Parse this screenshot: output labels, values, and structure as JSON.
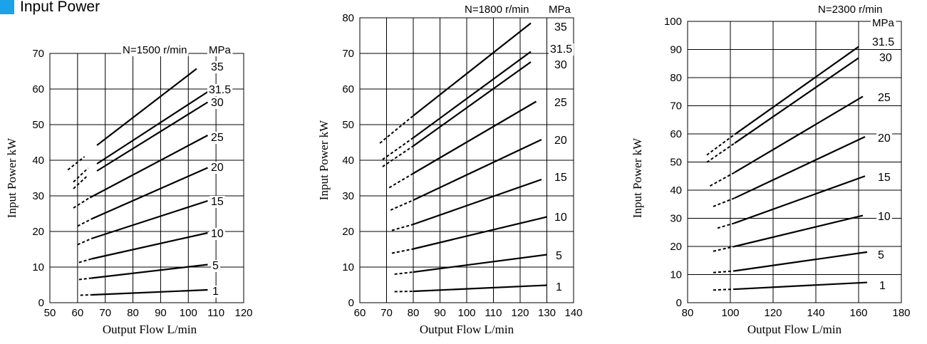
{
  "page": {
    "section_title": "Input Power",
    "accent_color": "#1aa3e8"
  },
  "chart_data": [
    {
      "type": "line",
      "condition": "N=1500 r/min",
      "unit": "MPa",
      "xlabel": "Output Flow  L/min",
      "ylabel": "Input Power  kW",
      "xlim": [
        50,
        120
      ],
      "ylim": [
        0,
        70
      ],
      "xticks": [
        50,
        60,
        70,
        80,
        90,
        100,
        110,
        120
      ],
      "yticks": [
        0,
        10,
        20,
        30,
        40,
        50,
        60,
        70
      ],
      "grid": true,
      "series": [
        {
          "name": "35",
          "dashed": [
            [
              56.5,
              37.3
            ],
            [
              62.5,
              41.0
            ]
          ],
          "solid": [
            [
              67,
              44.2
            ],
            [
              103,
              65.7
            ]
          ]
        },
        {
          "name": "31.5",
          "dashed": [
            [
              58.5,
              33.9
            ],
            [
              63.8,
              37.8
            ]
          ],
          "solid": [
            [
              67,
              39.0
            ],
            [
              107,
              59.2
            ]
          ]
        },
        {
          "name": "30",
          "dashed": [
            [
              58.5,
              32.0
            ],
            [
              63.8,
              35.8
            ]
          ],
          "solid": [
            [
              67,
              37.0
            ],
            [
              107,
              56.3
            ]
          ]
        },
        {
          "name": "25",
          "dashed": [
            [
              58.5,
              26.6
            ],
            [
              64.0,
              29.3
            ]
          ],
          "solid": [
            [
              64.5,
              29.5
            ],
            [
              107,
              47.0
            ]
          ]
        },
        {
          "name": "20",
          "dashed": [
            [
              60,
              21.5
            ],
            [
              65,
              23.5
            ]
          ],
          "solid": [
            [
              65,
              23.5
            ],
            [
              107,
              37.9
            ]
          ]
        },
        {
          "name": "15",
          "dashed": [
            [
              60,
              16.3
            ],
            [
              65,
              18.0
            ]
          ],
          "solid": [
            [
              65,
              18.0
            ],
            [
              107,
              28.6
            ]
          ]
        },
        {
          "name": "10",
          "dashed": [
            [
              60.5,
              11.3
            ],
            [
              65,
              12.3
            ]
          ],
          "solid": [
            [
              65,
              12.3
            ],
            [
              107,
              19.6
            ]
          ]
        },
        {
          "name": "5",
          "dashed": [
            [
              60.5,
              6.5
            ],
            [
              65,
              6.9
            ]
          ],
          "solid": [
            [
              65,
              6.9
            ],
            [
              107,
              10.7
            ]
          ]
        },
        {
          "name": "1",
          "dashed": [
            [
              61,
              2.1
            ],
            [
              65,
              2.2
            ]
          ],
          "solid": [
            [
              65,
              2.2
            ],
            [
              107,
              3.6
            ]
          ]
        }
      ]
    },
    {
      "type": "line",
      "condition": "N=1800 r/min",
      "unit": "MPa",
      "xlabel": "Output Flow  L/min",
      "ylabel": "Input Power  kW",
      "xlim": [
        60,
        140
      ],
      "ylim": [
        0,
        80
      ],
      "xticks": [
        60,
        70,
        80,
        90,
        100,
        110,
        120,
        130,
        140
      ],
      "yticks": [
        0,
        10,
        20,
        30,
        40,
        50,
        60,
        70,
        80
      ],
      "grid": true,
      "series": [
        {
          "name": "35",
          "dashed": [
            [
              67.5,
              44.8
            ],
            [
              80,
              52.5
            ]
          ],
          "solid": [
            [
              80,
              52.5
            ],
            [
              124,
              78.5
            ]
          ]
        },
        {
          "name": "31.5",
          "dashed": [
            [
              68.5,
              40.2
            ],
            [
              80,
              46.3
            ]
          ],
          "solid": [
            [
              80,
              46.3
            ],
            [
              124,
              70.5
            ]
          ]
        },
        {
          "name": "30",
          "dashed": [
            [
              68.5,
              38.2
            ],
            [
              80,
              44.0
            ]
          ],
          "solid": [
            [
              80,
              44.0
            ],
            [
              124,
              67.6
            ]
          ]
        },
        {
          "name": "25",
          "dashed": [
            [
              71,
              32.3
            ],
            [
              80,
              36.3
            ]
          ],
          "solid": [
            [
              80,
              36.3
            ],
            [
              126,
              56.5
            ]
          ]
        },
        {
          "name": "20",
          "dashed": [
            [
              71.5,
              26.0
            ],
            [
              80,
              28.8
            ]
          ],
          "solid": [
            [
              80,
              28.8
            ],
            [
              128,
              45.8
            ]
          ]
        },
        {
          "name": "15",
          "dashed": [
            [
              72,
              20.3
            ],
            [
              80,
              22.0
            ]
          ],
          "solid": [
            [
              80,
              22.0
            ],
            [
              128,
              34.6
            ]
          ]
        },
        {
          "name": "10",
          "dashed": [
            [
              72,
              13.9
            ],
            [
              80,
              15.1
            ]
          ],
          "solid": [
            [
              80,
              15.1
            ],
            [
              130,
              24.1
            ]
          ]
        },
        {
          "name": "5",
          "dashed": [
            [
              73,
              8.0
            ],
            [
              80,
              8.6
            ]
          ],
          "solid": [
            [
              80,
              8.6
            ],
            [
              130,
              13.5
            ]
          ]
        },
        {
          "name": "1",
          "dashed": [
            [
              73,
              3.1
            ],
            [
              80,
              3.2
            ]
          ],
          "solid": [
            [
              80,
              3.2
            ],
            [
              130,
              4.9
            ]
          ]
        }
      ]
    },
    {
      "type": "line",
      "condition": "N=2300 r/min",
      "unit": "MPa",
      "xlabel": "Output Flow  L/min",
      "ylabel": "Input Power  kW",
      "xlim": [
        80,
        180
      ],
      "ylim": [
        0,
        100
      ],
      "xticks": [
        80,
        100,
        120,
        140,
        160,
        180
      ],
      "yticks": [
        0,
        10,
        20,
        30,
        40,
        50,
        60,
        70,
        80,
        90,
        100
      ],
      "grid": true,
      "series": [
        {
          "name": "31.5",
          "dashed": [
            [
              89,
              52.5
            ],
            [
              102,
              59.8
            ]
          ],
          "solid": [
            [
              102,
              59.8
            ],
            [
              160,
              91.0
            ]
          ]
        },
        {
          "name": "30",
          "dashed": [
            [
              89,
              49.9
            ],
            [
              102,
              56.7
            ]
          ],
          "solid": [
            [
              102,
              56.7
            ],
            [
              160,
              87.0
            ]
          ]
        },
        {
          "name": "25",
          "dashed": [
            [
              90.5,
              41.5
            ],
            [
              102,
              46.3
            ]
          ],
          "solid": [
            [
              102,
              46.3
            ],
            [
              162,
              73.3
            ]
          ]
        },
        {
          "name": "20",
          "dashed": [
            [
              92,
              34.2
            ],
            [
              102,
              37.2
            ]
          ],
          "solid": [
            [
              102,
              37.2
            ],
            [
              163,
              59.0
            ]
          ]
        },
        {
          "name": "15",
          "dashed": [
            [
              94,
              26.5
            ],
            [
              102,
              28.3
            ]
          ],
          "solid": [
            [
              102,
              28.3
            ],
            [
              163,
              45.0
            ]
          ]
        },
        {
          "name": "10",
          "dashed": [
            [
              92,
              18.3
            ],
            [
              102,
              20.0
            ]
          ],
          "solid": [
            [
              102,
              20.0
            ],
            [
              162,
              31.0
            ]
          ]
        },
        {
          "name": "5",
          "dashed": [
            [
              92,
              10.7
            ],
            [
              102,
              11.3
            ]
          ],
          "solid": [
            [
              102,
              11.3
            ],
            [
              164,
              18.0
            ]
          ]
        },
        {
          "name": "1",
          "dashed": [
            [
              92,
              4.5
            ],
            [
              102,
              4.8
            ]
          ],
          "solid": [
            [
              102,
              4.8
            ],
            [
              164,
              7.2
            ]
          ]
        }
      ]
    }
  ]
}
